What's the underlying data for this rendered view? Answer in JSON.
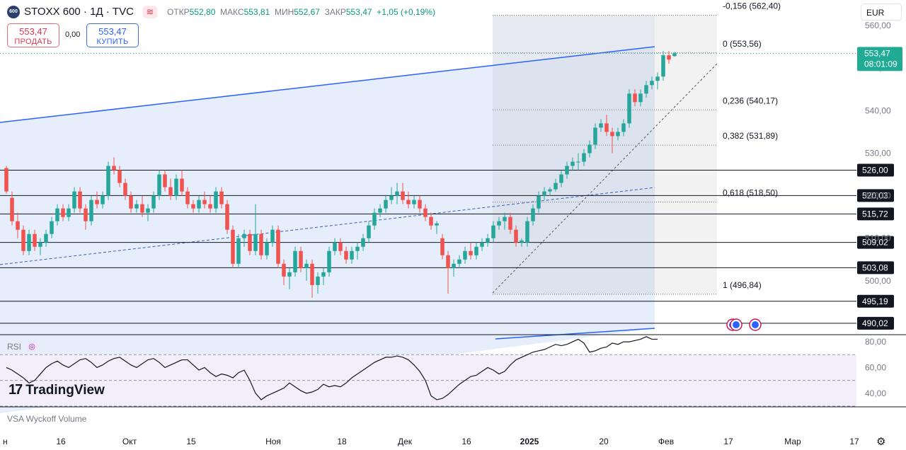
{
  "header": {
    "logo_text": "600",
    "symbol": "STOXX 600 · 1Д · TVC",
    "open_label": "ОТКР",
    "open": "552,80",
    "high_label": "МАКС",
    "high": "553,81",
    "low_label": "МИН",
    "low": "552,67",
    "close_label": "ЗАКР",
    "close": "553,47",
    "change": "+1,05 (+0,19%)",
    "sell_price": "553,47",
    "sell_label": "ПРОДАТЬ",
    "spread": "0,00",
    "buy_price": "553,47",
    "buy_label": "КУПИТЬ",
    "currency": "EUR"
  },
  "panes": {
    "rsi_label": "RSI",
    "vsa_label": "VSA Wyckoff Volume",
    "brand": "TradingView"
  },
  "colors": {
    "up": "#26a69a",
    "down": "#ef5350",
    "channel_line": "#2962ff",
    "channel_fill": "#e3ebfb",
    "fib_box": "#d5dbe6",
    "rsi_line": "#131722",
    "rsi_band": "#f3eef9",
    "price_badge": "#22ab94"
  },
  "chart_data": {
    "type": "candlestick",
    "title": "STOXX 600 · 1Д · TVC",
    "currency": "EUR",
    "y_axis_ticks": [
      500,
      510,
      520,
      530,
      540,
      550,
      560
    ],
    "y_axis_tick_labels": [
      "500,00",
      "510,00",
      "520,00",
      "530,00",
      "540,00",
      "550,00",
      "560,00"
    ],
    "ylim": [
      487.5,
      566.0
    ],
    "x_axis_labels": [
      "н",
      "16",
      "Окт",
      "15",
      "Ноя",
      "18",
      "Дек",
      "16",
      "2025",
      "20",
      "Фев",
      "17",
      "Мар",
      "17"
    ],
    "current_price": "553,47",
    "countdown": "08:01:09",
    "horizontal_levels": [
      {
        "value": 526.0,
        "label": "526,00"
      },
      {
        "value": 520.03,
        "label": "520,03"
      },
      {
        "value": 515.72,
        "label": "515,72"
      },
      {
        "value": 509.02,
        "label": "509,02"
      },
      {
        "value": 503.08,
        "label": "503,08"
      },
      {
        "value": 495.19,
        "label": "495,19"
      },
      {
        "value": 490.02,
        "label": "490,02"
      }
    ],
    "fibonacci": [
      {
        "level": "-0,156",
        "value": 562.4,
        "label": "-0,156 (562,40)"
      },
      {
        "level": "0",
        "value": 553.56,
        "label": "0 (553,56)"
      },
      {
        "level": "0,236",
        "value": 540.17,
        "label": "0,236 (540,17)"
      },
      {
        "level": "0,382",
        "value": 531.89,
        "label": "0,382 (531,89)"
      },
      {
        "level": "0,618",
        "value": 518.5,
        "label": "0,618 (518,50)"
      },
      {
        "level": "1",
        "value": 496.84,
        "label": "1 (496,84)"
      }
    ],
    "candles": [
      {
        "o": 526.5,
        "h": 527.0,
        "l": 520.5,
        "c": 521.0
      },
      {
        "o": 519.5,
        "h": 521.0,
        "l": 513.0,
        "c": 514.0
      },
      {
        "o": 514.0,
        "h": 516.0,
        "l": 510.0,
        "c": 512.0
      },
      {
        "o": 512.0,
        "h": 513.0,
        "l": 506.0,
        "c": 507.0
      },
      {
        "o": 507.0,
        "h": 512.0,
        "l": 506.0,
        "c": 511.0
      },
      {
        "o": 511.0,
        "h": 512.0,
        "l": 507.0,
        "c": 508.0
      },
      {
        "o": 508.0,
        "h": 510.0,
        "l": 506.0,
        "c": 509.0
      },
      {
        "o": 509.0,
        "h": 512.0,
        "l": 508.0,
        "c": 511.0
      },
      {
        "o": 511.0,
        "h": 515.0,
        "l": 510.0,
        "c": 514.0
      },
      {
        "o": 514.0,
        "h": 518.0,
        "l": 513.0,
        "c": 517.0
      },
      {
        "o": 517.0,
        "h": 518.0,
        "l": 514.0,
        "c": 515.0
      },
      {
        "o": 515.0,
        "h": 518.0,
        "l": 514.0,
        "c": 517.0
      },
      {
        "o": 517.0,
        "h": 522.0,
        "l": 516.0,
        "c": 521.0
      },
      {
        "o": 521.0,
        "h": 522.0,
        "l": 516.0,
        "c": 517.0
      },
      {
        "o": 517.0,
        "h": 518.0,
        "l": 512.0,
        "c": 514.0
      },
      {
        "o": 514.0,
        "h": 520.0,
        "l": 513.0,
        "c": 519.0
      },
      {
        "o": 519.0,
        "h": 521.0,
        "l": 517.0,
        "c": 518.0
      },
      {
        "o": 518.0,
        "h": 521.0,
        "l": 517.0,
        "c": 520.0
      },
      {
        "o": 520.0,
        "h": 528.0,
        "l": 519.0,
        "c": 527.0
      },
      {
        "o": 527.0,
        "h": 529.0,
        "l": 525.0,
        "c": 526.0
      },
      {
        "o": 526.0,
        "h": 527.0,
        "l": 522.0,
        "c": 523.0
      },
      {
        "o": 523.0,
        "h": 524.0,
        "l": 519.0,
        "c": 520.0
      },
      {
        "o": 520.0,
        "h": 521.0,
        "l": 516.0,
        "c": 517.0
      },
      {
        "o": 517.0,
        "h": 519.0,
        "l": 516.0,
        "c": 518.0
      },
      {
        "o": 518.0,
        "h": 520.0,
        "l": 515.0,
        "c": 516.0
      },
      {
        "o": 516.0,
        "h": 518.0,
        "l": 514.0,
        "c": 517.0
      },
      {
        "o": 517.0,
        "h": 521.0,
        "l": 516.0,
        "c": 520.0
      },
      {
        "o": 520.0,
        "h": 526.0,
        "l": 519.0,
        "c": 525.0
      },
      {
        "o": 525.0,
        "h": 526.0,
        "l": 521.0,
        "c": 522.0
      },
      {
        "o": 522.0,
        "h": 524.0,
        "l": 519.0,
        "c": 520.0
      },
      {
        "o": 520.0,
        "h": 525.0,
        "l": 519.0,
        "c": 524.0
      },
      {
        "o": 524.0,
        "h": 526.0,
        "l": 520.0,
        "c": 521.0
      },
      {
        "o": 521.0,
        "h": 522.0,
        "l": 517.0,
        "c": 518.0
      },
      {
        "o": 518.0,
        "h": 519.0,
        "l": 516.0,
        "c": 517.0
      },
      {
        "o": 517.0,
        "h": 520.0,
        "l": 516.0,
        "c": 519.0
      },
      {
        "o": 519.0,
        "h": 521.0,
        "l": 517.0,
        "c": 518.0
      },
      {
        "o": 518.0,
        "h": 520.0,
        "l": 516.0,
        "c": 517.0
      },
      {
        "o": 517.0,
        "h": 522.0,
        "l": 516.0,
        "c": 521.0
      },
      {
        "o": 521.0,
        "h": 522.0,
        "l": 517.0,
        "c": 518.0
      },
      {
        "o": 518.0,
        "h": 519.0,
        "l": 511.0,
        "c": 512.0
      },
      {
        "o": 512.0,
        "h": 513.0,
        "l": 503.0,
        "c": 504.0
      },
      {
        "o": 504.0,
        "h": 511.0,
        "l": 503.0,
        "c": 510.0
      },
      {
        "o": 510.0,
        "h": 512.0,
        "l": 508.0,
        "c": 511.0
      },
      {
        "o": 511.0,
        "h": 512.0,
        "l": 506.0,
        "c": 507.0
      },
      {
        "o": 507.0,
        "h": 518.0,
        "l": 506.0,
        "c": 511.0
      },
      {
        "o": 511.0,
        "h": 512.0,
        "l": 505.0,
        "c": 506.0
      },
      {
        "o": 506.0,
        "h": 510.0,
        "l": 505.0,
        "c": 509.0
      },
      {
        "o": 509.0,
        "h": 513.0,
        "l": 508.0,
        "c": 512.0
      },
      {
        "o": 512.0,
        "h": 513.0,
        "l": 503.0,
        "c": 504.0
      },
      {
        "o": 504.0,
        "h": 505.0,
        "l": 499.0,
        "c": 501.0
      },
      {
        "o": 501.0,
        "h": 503.0,
        "l": 498.0,
        "c": 502.0
      },
      {
        "o": 502.0,
        "h": 508.0,
        "l": 501.0,
        "c": 507.0
      },
      {
        "o": 507.0,
        "h": 508.0,
        "l": 502.0,
        "c": 503.0
      },
      {
        "o": 503.0,
        "h": 505.0,
        "l": 500.0,
        "c": 504.0
      },
      {
        "o": 504.0,
        "h": 505.0,
        "l": 496.0,
        "c": 499.0
      },
      {
        "o": 499.0,
        "h": 502.0,
        "l": 497.0,
        "c": 501.0
      },
      {
        "o": 501.0,
        "h": 503.0,
        "l": 499.0,
        "c": 502.0
      },
      {
        "o": 502.0,
        "h": 508.0,
        "l": 501.0,
        "c": 507.0
      },
      {
        "o": 507.0,
        "h": 510.0,
        "l": 506.0,
        "c": 509.0
      },
      {
        "o": 509.0,
        "h": 510.0,
        "l": 506.0,
        "c": 507.0
      },
      {
        "o": 507.0,
        "h": 508.0,
        "l": 504.0,
        "c": 505.0
      },
      {
        "o": 505.0,
        "h": 508.0,
        "l": 504.0,
        "c": 507.0
      },
      {
        "o": 507.0,
        "h": 509.0,
        "l": 505.0,
        "c": 508.0
      },
      {
        "o": 508.0,
        "h": 511.0,
        "l": 507.0,
        "c": 510.0
      },
      {
        "o": 510.0,
        "h": 514.0,
        "l": 509.0,
        "c": 513.0
      },
      {
        "o": 513.0,
        "h": 517.0,
        "l": 512.0,
        "c": 516.0
      },
      {
        "o": 516.0,
        "h": 518.0,
        "l": 515.0,
        "c": 517.0
      },
      {
        "o": 517.0,
        "h": 520.0,
        "l": 516.0,
        "c": 519.0
      },
      {
        "o": 519.0,
        "h": 522.0,
        "l": 518.0,
        "c": 520.0
      },
      {
        "o": 520.0,
        "h": 523.0,
        "l": 518.0,
        "c": 521.0
      },
      {
        "o": 521.0,
        "h": 523.0,
        "l": 518.0,
        "c": 519.0
      },
      {
        "o": 519.0,
        "h": 521.0,
        "l": 517.0,
        "c": 518.0
      },
      {
        "o": 518.0,
        "h": 520.0,
        "l": 517.0,
        "c": 519.0
      },
      {
        "o": 519.0,
        "h": 520.0,
        "l": 516.0,
        "c": 517.0
      },
      {
        "o": 517.0,
        "h": 518.0,
        "l": 514.0,
        "c": 515.0
      },
      {
        "o": 515.0,
        "h": 516.0,
        "l": 512.0,
        "c": 513.0
      },
      {
        "o": 513.0,
        "h": 514.0,
        "l": 511.0,
        "c": 513.5
      },
      {
        "o": 510.0,
        "h": 511.0,
        "l": 505.0,
        "c": 506.0
      },
      {
        "o": 506.0,
        "h": 507.0,
        "l": 497.0,
        "c": 503.0
      },
      {
        "o": 503.0,
        "h": 505.0,
        "l": 501.0,
        "c": 504.0
      },
      {
        "o": 504.0,
        "h": 506.0,
        "l": 503.0,
        "c": 505.0
      },
      {
        "o": 505.0,
        "h": 508.0,
        "l": 504.0,
        "c": 507.0
      },
      {
        "o": 507.0,
        "h": 509.0,
        "l": 505.0,
        "c": 506.0
      },
      {
        "o": 506.0,
        "h": 509.0,
        "l": 505.0,
        "c": 508.0
      },
      {
        "o": 508.0,
        "h": 510.0,
        "l": 507.0,
        "c": 509.0
      },
      {
        "o": 509.0,
        "h": 511.0,
        "l": 508.0,
        "c": 510.0
      },
      {
        "o": 510.0,
        "h": 514.0,
        "l": 509.0,
        "c": 513.0
      },
      {
        "o": 513.0,
        "h": 515.0,
        "l": 512.0,
        "c": 514.0
      },
      {
        "o": 514.0,
        "h": 516.0,
        "l": 512.0,
        "c": 515.0
      },
      {
        "o": 515.0,
        "h": 516.0,
        "l": 511.0,
        "c": 512.0
      },
      {
        "o": 512.0,
        "h": 513.0,
        "l": 508.0,
        "c": 509.0
      },
      {
        "o": 509.0,
        "h": 510.0,
        "l": 508.0,
        "c": 509.5
      },
      {
        "o": 509.0,
        "h": 515.0,
        "l": 508.0,
        "c": 514.0
      },
      {
        "o": 514.0,
        "h": 518.0,
        "l": 513.0,
        "c": 517.0
      },
      {
        "o": 517.0,
        "h": 521.0,
        "l": 516.0,
        "c": 520.0
      },
      {
        "o": 520.0,
        "h": 522.0,
        "l": 519.0,
        "c": 521.0
      },
      {
        "o": 521.0,
        "h": 522.0,
        "l": 520.0,
        "c": 521.5
      },
      {
        "o": 521.5,
        "h": 524.0,
        "l": 521.0,
        "c": 523.0
      },
      {
        "o": 523.0,
        "h": 526.0,
        "l": 522.0,
        "c": 525.0
      },
      {
        "o": 525.0,
        "h": 528.0,
        "l": 524.0,
        "c": 527.0
      },
      {
        "o": 527.0,
        "h": 529.0,
        "l": 526.0,
        "c": 528.0
      },
      {
        "o": 528.0,
        "h": 530.0,
        "l": 526.0,
        "c": 528.0
      },
      {
        "o": 528.0,
        "h": 531.0,
        "l": 527.0,
        "c": 530.0
      },
      {
        "o": 530.0,
        "h": 533.0,
        "l": 529.0,
        "c": 532.0
      },
      {
        "o": 532.0,
        "h": 537.0,
        "l": 531.0,
        "c": 536.0
      },
      {
        "o": 536.0,
        "h": 538.0,
        "l": 535.0,
        "c": 537.0
      },
      {
        "o": 537.0,
        "h": 539.0,
        "l": 534.0,
        "c": 535.0
      },
      {
        "o": 535.0,
        "h": 536.0,
        "l": 530.0,
        "c": 534.0
      },
      {
        "o": 534.0,
        "h": 536.0,
        "l": 533.0,
        "c": 535.0
      },
      {
        "o": 535.0,
        "h": 538.0,
        "l": 534.0,
        "c": 537.0
      },
      {
        "o": 537.0,
        "h": 545.0,
        "l": 536.0,
        "c": 544.0
      },
      {
        "o": 544.0,
        "h": 545.0,
        "l": 541.0,
        "c": 542.0
      },
      {
        "o": 542.0,
        "h": 545.0,
        "l": 541.0,
        "c": 544.0
      },
      {
        "o": 544.0,
        "h": 547.0,
        "l": 543.0,
        "c": 546.0
      },
      {
        "o": 546.0,
        "h": 548.0,
        "l": 545.0,
        "c": 547.0
      },
      {
        "o": 547.0,
        "h": 549.0,
        "l": 545.0,
        "c": 548.0
      },
      {
        "o": 548.0,
        "h": 554.0,
        "l": 547.0,
        "c": 553.0
      },
      {
        "o": 553.0,
        "h": 554.0,
        "l": 551.0,
        "c": 552.0
      },
      {
        "o": 552.8,
        "h": 553.81,
        "l": 552.67,
        "c": 553.47
      }
    ],
    "rsi": {
      "label": "RSI",
      "y_ticks": [
        40,
        60,
        80
      ],
      "y_tick_labels": [
        "40,00",
        "60,00",
        "80,00"
      ],
      "ylim": [
        30,
        85
      ],
      "upper_band": 70,
      "lower_band": 30,
      "values": [
        60,
        58,
        55,
        52,
        48,
        50,
        55,
        60,
        63,
        65,
        62,
        60,
        63,
        66,
        67,
        64,
        60,
        62,
        65,
        67,
        68,
        65,
        62,
        60,
        63,
        66,
        67,
        64,
        60,
        62,
        64,
        66,
        66,
        62,
        58,
        60,
        56,
        53,
        55,
        54,
        52,
        56,
        58,
        50,
        40,
        35,
        38,
        40,
        42,
        44,
        48,
        45,
        42,
        40,
        41,
        43,
        47,
        45,
        46,
        45,
        48,
        52,
        55,
        58,
        61,
        64,
        66,
        68,
        68,
        69,
        68,
        66,
        62,
        57,
        50,
        38,
        35,
        36,
        39,
        43,
        47,
        50,
        53,
        54,
        57,
        60,
        58,
        55,
        57,
        62,
        66,
        68,
        70,
        72,
        73,
        74,
        76,
        78,
        77,
        78,
        80,
        82,
        79,
        72,
        73,
        75,
        76,
        79,
        78,
        80,
        80,
        81,
        82,
        84,
        82,
        82
      ]
    }
  }
}
